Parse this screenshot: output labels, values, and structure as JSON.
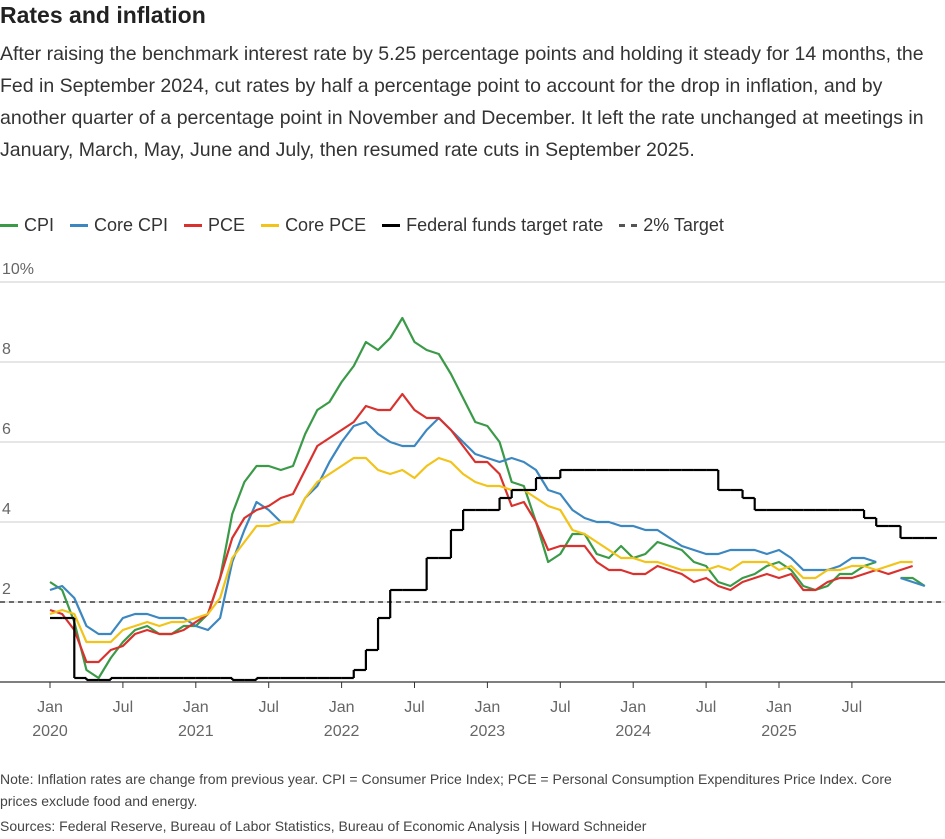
{
  "chart_data": {
    "type": "line",
    "title": "Rates and inflation",
    "subtitle": "After raising the benchmark interest rate by 5.25 percentage points and holding it steady for 14 months, the Fed in September 2024, cut rates by half a percentage point to account for the drop in inflation, and by another quarter of a percentage point in November and December. It left the rate unchanged at meetings in January, March, May, June and July, then resumed rate cuts in September 2025.",
    "note": "Note: Inflation rates are change from previous year. CPI = Consumer Price Index; PCE = Personal Consumption Expenditures Price Index. Core prices exclude food and energy.",
    "source": "Sources: Federal Reserve, Bureau of Labor Statistics, Bureau of Economic Analysis | Howard Schneider",
    "x": [
      "2020-01",
      "2020-02",
      "2020-03",
      "2020-04",
      "2020-05",
      "2020-06",
      "2020-07",
      "2020-08",
      "2020-09",
      "2020-10",
      "2020-11",
      "2020-12",
      "2021-01",
      "2021-02",
      "2021-03",
      "2021-04",
      "2021-05",
      "2021-06",
      "2021-07",
      "2021-08",
      "2021-09",
      "2021-10",
      "2021-11",
      "2021-12",
      "2022-01",
      "2022-02",
      "2022-03",
      "2022-04",
      "2022-05",
      "2022-06",
      "2022-07",
      "2022-08",
      "2022-09",
      "2022-10",
      "2022-11",
      "2022-12",
      "2023-01",
      "2023-02",
      "2023-03",
      "2023-04",
      "2023-05",
      "2023-06",
      "2023-07",
      "2023-08",
      "2023-09",
      "2023-10",
      "2023-11",
      "2023-12",
      "2024-01",
      "2024-02",
      "2024-03",
      "2024-04",
      "2024-05",
      "2024-06",
      "2024-07",
      "2024-08",
      "2024-09",
      "2024-10",
      "2024-11",
      "2024-12",
      "2025-01",
      "2025-02",
      "2025-03",
      "2025-04",
      "2025-05",
      "2025-06",
      "2025-07",
      "2025-08",
      "2025-09",
      "2025-10",
      "2025-11",
      "2025-12",
      "2026-01"
    ],
    "xticks": [
      {
        "value": "2020-01",
        "label": "Jan 2020"
      },
      {
        "value": "2020-07",
        "label": "Jul"
      },
      {
        "value": "2021-01",
        "label": "Jan 2021"
      },
      {
        "value": "2021-07",
        "label": "Jul"
      },
      {
        "value": "2022-01",
        "label": "Jan 2022"
      },
      {
        "value": "2022-07",
        "label": "Jul"
      },
      {
        "value": "2023-01",
        "label": "Jan 2023"
      },
      {
        "value": "2023-07",
        "label": "Jul"
      },
      {
        "value": "2024-01",
        "label": "Jan 2024"
      },
      {
        "value": "2024-07",
        "label": "Jul"
      },
      {
        "value": "2025-01",
        "label": "Jan 2025"
      },
      {
        "value": "2025-07",
        "label": "Jul"
      }
    ],
    "ylim": [
      0,
      10
    ],
    "yticks": [
      {
        "value": 10,
        "label": "10%"
      },
      8,
      6,
      4,
      2
    ],
    "grid": true,
    "series": [
      {
        "name": "CPI",
        "color": "#3a9a48",
        "values": [
          2.5,
          2.3,
          1.5,
          0.3,
          0.1,
          0.6,
          1.0,
          1.3,
          1.4,
          1.2,
          1.2,
          1.4,
          1.4,
          1.7,
          2.6,
          4.2,
          5.0,
          5.4,
          5.4,
          5.3,
          5.4,
          6.2,
          6.8,
          7.0,
          7.5,
          7.9,
          8.5,
          8.3,
          8.6,
          9.1,
          8.5,
          8.3,
          8.2,
          7.7,
          7.1,
          6.5,
          6.4,
          6.0,
          5.0,
          4.9,
          4.0,
          3.0,
          3.2,
          3.7,
          3.7,
          3.2,
          3.1,
          3.4,
          3.1,
          3.2,
          3.5,
          3.4,
          3.3,
          3.0,
          2.9,
          2.5,
          2.4,
          2.6,
          2.7,
          2.9,
          3.0,
          2.8,
          2.4,
          2.3,
          2.4,
          2.7,
          2.7,
          2.9,
          3.0,
          null,
          2.6,
          2.6,
          2.4
        ]
      },
      {
        "name": "Core CPI",
        "color": "#3c87c0",
        "values": [
          2.3,
          2.4,
          2.1,
          1.4,
          1.2,
          1.2,
          1.6,
          1.7,
          1.7,
          1.6,
          1.6,
          1.6,
          1.4,
          1.3,
          1.6,
          3.0,
          3.8,
          4.5,
          4.3,
          4.0,
          4.0,
          4.6,
          4.9,
          5.5,
          6.0,
          6.4,
          6.5,
          6.2,
          6.0,
          5.9,
          5.9,
          6.3,
          6.6,
          6.3,
          6.0,
          5.7,
          5.6,
          5.5,
          5.6,
          5.5,
          5.3,
          4.8,
          4.7,
          4.3,
          4.1,
          4.0,
          4.0,
          3.9,
          3.9,
          3.8,
          3.8,
          3.6,
          3.4,
          3.3,
          3.2,
          3.2,
          3.3,
          3.3,
          3.3,
          3.2,
          3.3,
          3.1,
          2.8,
          2.8,
          2.8,
          2.9,
          3.1,
          3.1,
          3.0,
          null,
          2.6,
          2.5,
          2.4
        ]
      },
      {
        "name": "PCE",
        "color": "#d9322e",
        "values": [
          1.8,
          1.7,
          1.3,
          0.5,
          0.5,
          0.8,
          0.9,
          1.2,
          1.3,
          1.2,
          1.2,
          1.3,
          1.5,
          1.7,
          2.6,
          3.6,
          4.1,
          4.3,
          4.4,
          4.6,
          4.7,
          5.3,
          5.9,
          6.1,
          6.3,
          6.5,
          6.9,
          6.8,
          6.8,
          7.2,
          6.8,
          6.6,
          6.6,
          6.3,
          5.9,
          5.5,
          5.5,
          5.2,
          4.4,
          4.5,
          4.0,
          3.3,
          3.4,
          3.4,
          3.4,
          3.0,
          2.8,
          2.8,
          2.7,
          2.7,
          2.9,
          2.8,
          2.7,
          2.5,
          2.6,
          2.4,
          2.3,
          2.5,
          2.6,
          2.7,
          2.6,
          2.7,
          2.3,
          2.3,
          2.5,
          2.6,
          2.6,
          2.7,
          2.8,
          2.7,
          2.8,
          2.9,
          null
        ]
      },
      {
        "name": "Core PCE",
        "color": "#f2c318",
        "values": [
          1.7,
          1.8,
          1.7,
          1.0,
          1.0,
          1.0,
          1.3,
          1.4,
          1.5,
          1.4,
          1.5,
          1.5,
          1.6,
          1.7,
          2.1,
          3.1,
          3.5,
          3.9,
          3.9,
          4.0,
          4.0,
          4.6,
          5.0,
          5.2,
          5.4,
          5.6,
          5.6,
          5.3,
          5.2,
          5.3,
          5.1,
          5.4,
          5.6,
          5.5,
          5.2,
          5.0,
          4.9,
          4.9,
          4.8,
          4.8,
          4.6,
          4.4,
          4.3,
          3.8,
          3.7,
          3.5,
          3.3,
          3.1,
          3.1,
          3.0,
          3.0,
          2.9,
          2.8,
          2.8,
          2.8,
          2.9,
          2.8,
          3.0,
          3.0,
          3.0,
          2.8,
          2.9,
          2.6,
          2.6,
          2.8,
          2.8,
          2.9,
          2.9,
          2.8,
          2.9,
          3.0,
          3.0,
          null
        ]
      },
      {
        "name": "Federal funds target rate",
        "color": "#000000",
        "step": true,
        "values": [
          1.6,
          1.6,
          0.1,
          0.05,
          0.05,
          0.1,
          0.1,
          0.1,
          0.1,
          0.1,
          0.1,
          0.1,
          0.1,
          0.1,
          0.1,
          0.05,
          0.05,
          0.1,
          0.1,
          0.1,
          0.1,
          0.1,
          0.1,
          0.1,
          0.1,
          0.3,
          0.8,
          1.6,
          2.3,
          2.3,
          2.3,
          3.1,
          3.1,
          3.8,
          4.3,
          4.3,
          4.3,
          4.6,
          4.8,
          4.8,
          5.1,
          5.1,
          5.3,
          5.3,
          5.3,
          5.3,
          5.3,
          5.3,
          5.3,
          5.3,
          5.3,
          5.3,
          5.3,
          5.3,
          5.3,
          4.8,
          4.8,
          4.6,
          4.3,
          4.3,
          4.3,
          4.3,
          4.3,
          4.3,
          4.3,
          4.3,
          4.3,
          4.1,
          3.9,
          3.9,
          3.6,
          3.6,
          3.6
        ]
      }
    ],
    "reference_line": {
      "name": "2% Target",
      "value": 2,
      "color": "#555555",
      "dashed": true
    }
  }
}
